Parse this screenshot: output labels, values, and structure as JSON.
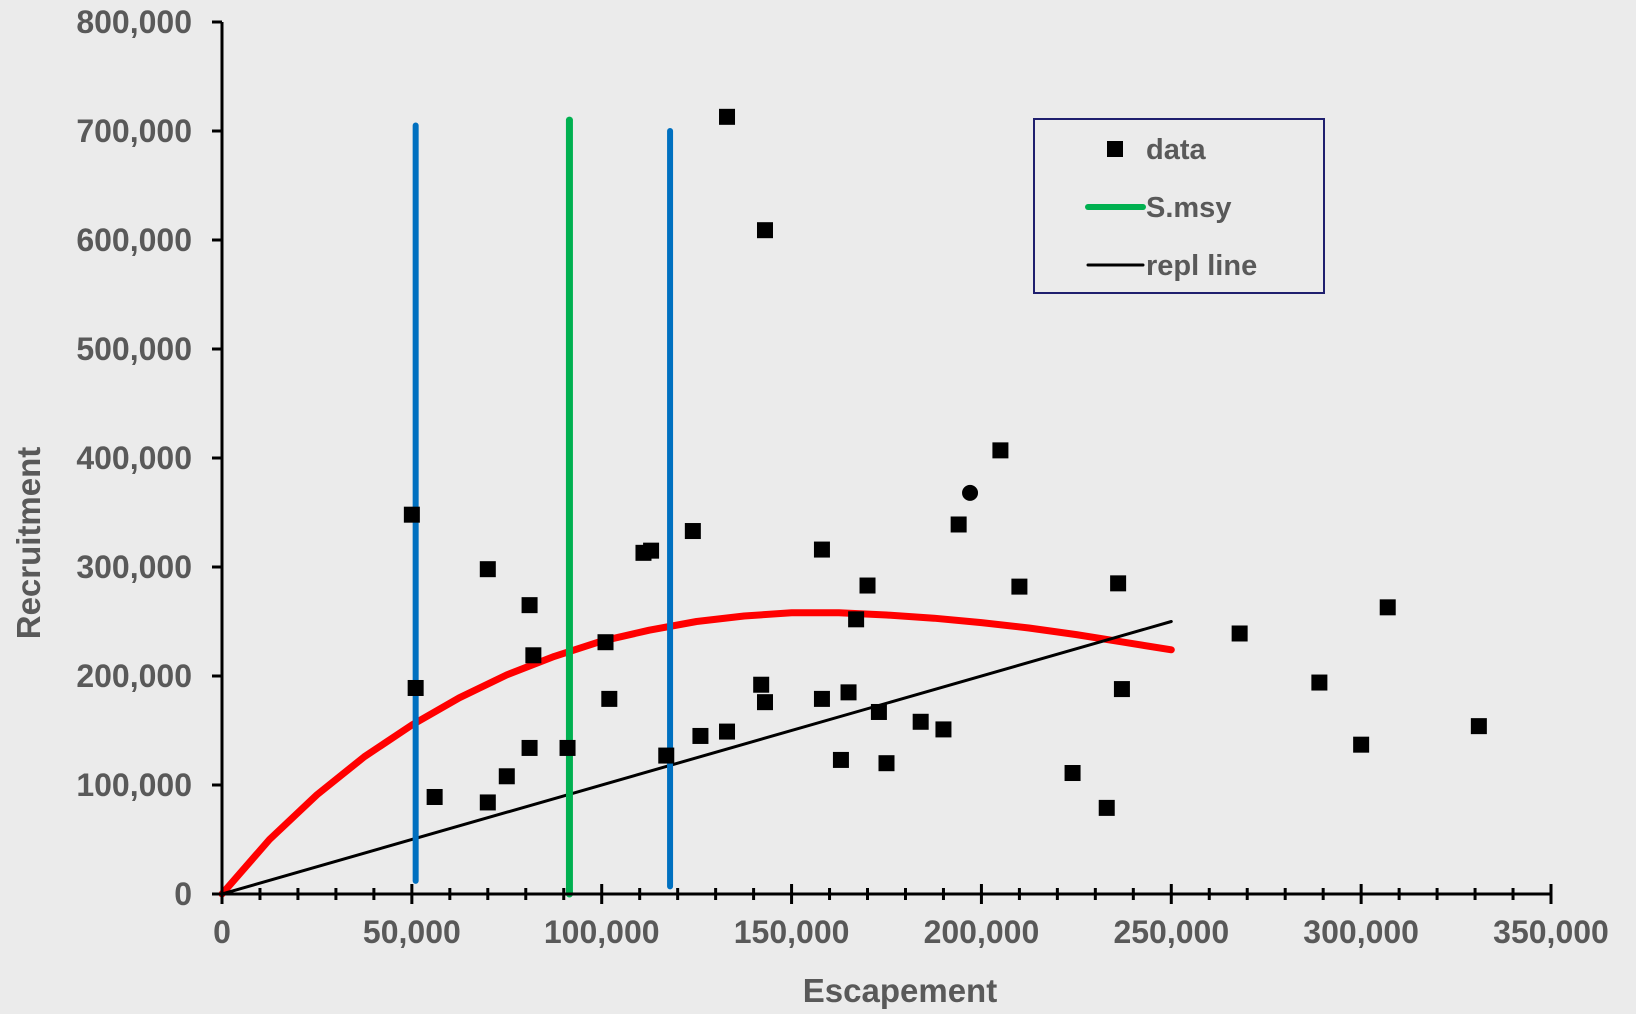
{
  "chart_data": {
    "type": "scatter",
    "xlabel": "Escapement",
    "ylabel": "Recruitment",
    "xlim": [
      0,
      350000
    ],
    "ylim": [
      0,
      800000
    ],
    "x_ticks": [
      {
        "value": 0,
        "label": "0"
      },
      {
        "value": 50000,
        "label": "50,000"
      },
      {
        "value": 100000,
        "label": "100,000"
      },
      {
        "value": 150000,
        "label": "150,000"
      },
      {
        "value": 200000,
        "label": "200,000"
      },
      {
        "value": 250000,
        "label": "250,000"
      },
      {
        "value": 300000,
        "label": "300,000"
      },
      {
        "value": 350000,
        "label": "350,000"
      }
    ],
    "y_ticks": [
      {
        "value": 0,
        "label": "0"
      },
      {
        "value": 100000,
        "label": "100,000"
      },
      {
        "value": 200000,
        "label": "200,000"
      },
      {
        "value": 300000,
        "label": "300,000"
      },
      {
        "value": 400000,
        "label": "400,000"
      },
      {
        "value": 500000,
        "label": "500,000"
      },
      {
        "value": 600000,
        "label": "600,000"
      },
      {
        "value": 700000,
        "label": "700,000"
      },
      {
        "value": 800000,
        "label": "800,000"
      }
    ],
    "legend": {
      "position": "top-right",
      "entries": [
        {
          "label": "data",
          "marker": "square",
          "color": "#000000"
        },
        {
          "label": "S.msy",
          "marker": "line",
          "color": "#00b050"
        },
        {
          "label": "repl line",
          "marker": "line",
          "color": "#000000"
        }
      ]
    },
    "series": [
      {
        "name": "data",
        "kind": "scatter",
        "marker": "square",
        "color": "#000000",
        "points": [
          [
            50000,
            348000
          ],
          [
            51000,
            189000
          ],
          [
            56000,
            89000
          ],
          [
            70000,
            84000
          ],
          [
            70000,
            298000
          ],
          [
            75000,
            108000
          ],
          [
            81000,
            134000
          ],
          [
            81000,
            265000
          ],
          [
            82000,
            219000
          ],
          [
            91000,
            134000
          ],
          [
            101000,
            231000
          ],
          [
            102000,
            179000
          ],
          [
            111000,
            313000
          ],
          [
            113000,
            315000
          ],
          [
            117000,
            127000
          ],
          [
            124000,
            333000
          ],
          [
            126000,
            145000
          ],
          [
            133000,
            149000
          ],
          [
            133000,
            713000
          ],
          [
            142000,
            192000
          ],
          [
            143000,
            609000
          ],
          [
            143000,
            176000
          ],
          [
            158000,
            179000
          ],
          [
            158000,
            316000
          ],
          [
            163000,
            123000
          ],
          [
            165000,
            185000
          ],
          [
            167000,
            252000
          ],
          [
            170000,
            283000
          ],
          [
            173000,
            167000
          ],
          [
            175000,
            120000
          ],
          [
            184000,
            158000
          ],
          [
            190000,
            151000
          ],
          [
            194000,
            339000
          ],
          [
            205000,
            407000
          ],
          [
            210000,
            282000
          ],
          [
            224000,
            111000
          ],
          [
            233000,
            79000
          ],
          [
            236000,
            285000
          ],
          [
            237000,
            188000
          ],
          [
            268000,
            239000
          ],
          [
            289000,
            194000
          ],
          [
            300000,
            137000
          ],
          [
            307000,
            263000
          ],
          [
            331000,
            154000
          ]
        ]
      },
      {
        "name": "",
        "kind": "scatter",
        "marker": "circle",
        "color": "#000000",
        "points": [
          [
            197000,
            368000
          ]
        ]
      },
      {
        "name": "",
        "kind": "curve",
        "color": "#ff0000",
        "points": [
          [
            0,
            0
          ],
          [
            12500,
            50000
          ],
          [
            25000,
            91000
          ],
          [
            37500,
            126000
          ],
          [
            50000,
            155000
          ],
          [
            62500,
            180000
          ],
          [
            75000,
            201000
          ],
          [
            87500,
            218000
          ],
          [
            100000,
            232000
          ],
          [
            112500,
            242000
          ],
          [
            125000,
            250000
          ],
          [
            137500,
            255000
          ],
          [
            150000,
            258000
          ],
          [
            162500,
            258000
          ],
          [
            175000,
            256000
          ],
          [
            187500,
            253000
          ],
          [
            200000,
            249000
          ],
          [
            212500,
            244000
          ],
          [
            225000,
            238000
          ],
          [
            237500,
            231000
          ],
          [
            250000,
            224000
          ]
        ]
      },
      {
        "name": "repl line",
        "kind": "line",
        "color": "#000000",
        "points": [
          [
            0,
            0
          ],
          [
            250000,
            250000
          ]
        ]
      },
      {
        "name": "S.msy",
        "kind": "vline",
        "color": "#00b050",
        "x": 91500,
        "y_range": [
          0,
          710000
        ]
      },
      {
        "name": "",
        "kind": "vline",
        "color": "#0070c0",
        "x": 51000,
        "y_range": [
          12000,
          705000
        ]
      },
      {
        "name": "",
        "kind": "vline",
        "color": "#0070c0",
        "x": 118000,
        "y_range": [
          7000,
          700000
        ]
      }
    ],
    "grid": false
  }
}
